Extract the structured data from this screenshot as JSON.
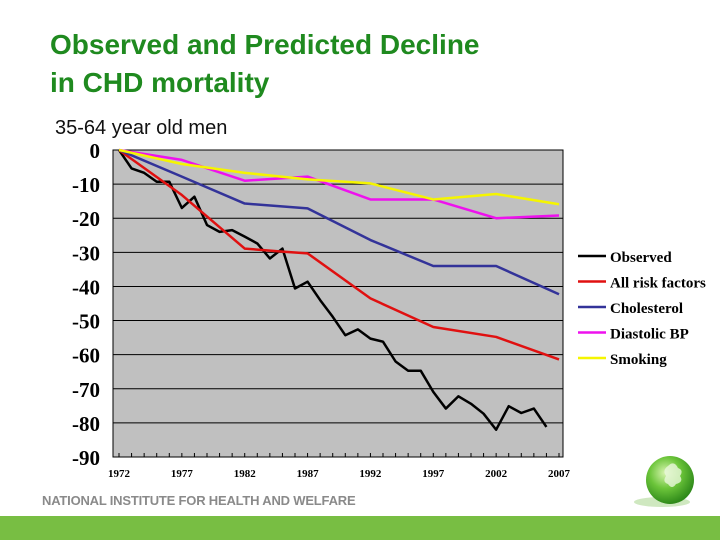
{
  "header": {
    "title_line1": "Observed and Predicted Decline",
    "title_line2": "in CHD mortality",
    "subtitle": "35-64 year old men"
  },
  "footer": {
    "organization": "NATIONAL INSTITUTE FOR HEALTH AND WELFARE",
    "bar_color": "#78be43",
    "logo": "green-globe-leaf-logo"
  },
  "chart_data": {
    "type": "line",
    "title": "",
    "xlabel": "",
    "ylabel": "",
    "xlim": [
      1972,
      2007
    ],
    "ylim": [
      -90,
      0
    ],
    "x_ticks": [
      "1972",
      "1977",
      "1982",
      "1987",
      "1992",
      "1997",
      "2002",
      "2007"
    ],
    "y_ticks": [
      "0",
      "-10",
      "-20",
      "-30",
      "-40",
      "-50",
      "-60",
      "-70",
      "-80",
      "-90"
    ],
    "grid": "horizontal",
    "plot_background": "#c0c0c0",
    "legend_position": "right",
    "series": [
      {
        "name": "Observed",
        "color": "#000000",
        "x": [
          1972,
          1973,
          1974,
          1975,
          1976,
          1977,
          1978,
          1979,
          1980,
          1981,
          1982,
          1983,
          1984,
          1985,
          1986,
          1987,
          1988,
          1989,
          1990,
          1991,
          1992,
          1993,
          1994,
          1995,
          1996,
          1997,
          1998,
          1999,
          2000,
          2001,
          2002,
          2003,
          2004,
          2005,
          2006
        ],
        "y": [
          0,
          -5.4,
          -6.7,
          -9.3,
          -9.3,
          -17,
          -13.7,
          -22,
          -24,
          -23.5,
          -25.4,
          -27.4,
          -31.8,
          -28.9,
          -40.6,
          -38.6,
          -44,
          -48.9,
          -54.3,
          -52.6,
          -55.3,
          -56.2,
          -62,
          -64.7,
          -64.7,
          -70.9,
          -75.8,
          -72.2,
          -74.4,
          -77.3,
          -82,
          -75.1,
          -77.1,
          -75.8,
          -81.2
        ]
      },
      {
        "name": "All risk factors",
        "color": "#e01010",
        "x": [
          1972,
          1977,
          1982,
          1985,
          1987,
          1992,
          1997,
          2002,
          2007
        ],
        "y": [
          0,
          -13.2,
          -28.9,
          -29.8,
          -30.3,
          -43.5,
          -51.9,
          -54.8,
          -61.4
        ]
      },
      {
        "name": "Cholesterol",
        "color": "#333399",
        "x": [
          1972,
          1977,
          1982,
          1987,
          1992,
          1997,
          2002,
          2007
        ],
        "y": [
          0,
          -7.8,
          -15.7,
          -17.1,
          -26.4,
          -34,
          -34,
          -42.3
        ]
      },
      {
        "name": "Diastolic BP",
        "color": "#ee11ee",
        "x": [
          1972,
          1977,
          1982,
          1987,
          1992,
          1997,
          2002,
          2007
        ],
        "y": [
          0,
          -2.9,
          -9,
          -7.8,
          -14.5,
          -14.5,
          -20,
          -19.2
        ]
      },
      {
        "name": "Smoking",
        "color": "#f5f500",
        "x": [
          1972,
          1977,
          1982,
          1987,
          1992,
          1997,
          2002,
          2007
        ],
        "y": [
          0,
          -4.1,
          -6.7,
          -8.6,
          -9.8,
          -14.5,
          -12.9,
          -15.9
        ]
      }
    ]
  }
}
